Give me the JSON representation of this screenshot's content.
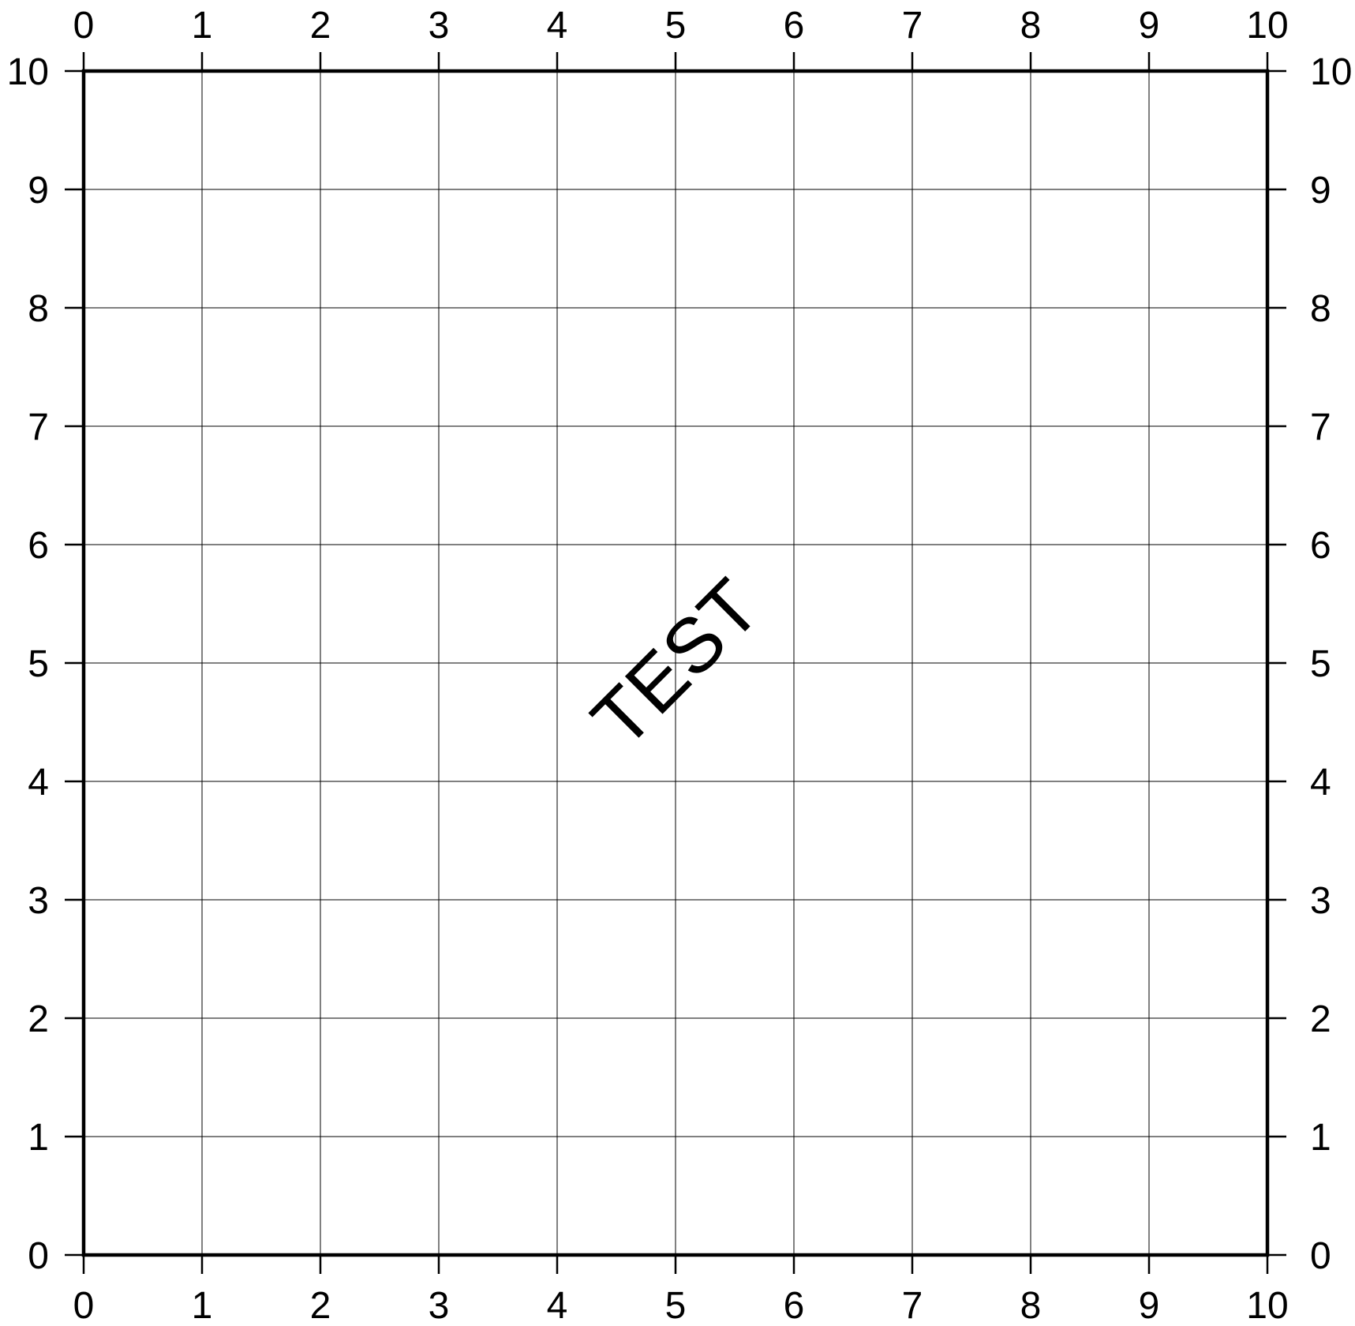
{
  "chart_data": {
    "type": "scatter",
    "title": "",
    "xlabel": "",
    "ylabel": "",
    "xlim": [
      0,
      10
    ],
    "ylim": [
      0,
      10
    ],
    "xticks": [
      0,
      1,
      2,
      3,
      4,
      5,
      6,
      7,
      8,
      9,
      10
    ],
    "yticks": [
      0,
      1,
      2,
      3,
      4,
      5,
      6,
      7,
      8,
      9,
      10
    ],
    "xtick_labels": [
      "0",
      "1",
      "2",
      "3",
      "4",
      "5",
      "6",
      "7",
      "8",
      "9",
      "10"
    ],
    "ytick_labels": [
      "0",
      "1",
      "2",
      "3",
      "4",
      "5",
      "6",
      "7",
      "8",
      "9",
      "10"
    ],
    "tick_label_sides": [
      "top",
      "bottom",
      "left",
      "right"
    ],
    "grid": true,
    "series": [],
    "annotations": [
      {
        "text": "TEST",
        "x": 5,
        "y": 5,
        "angle_deg": 45
      }
    ],
    "colors": {
      "ink": "#000000",
      "background": "#ffffff"
    }
  }
}
